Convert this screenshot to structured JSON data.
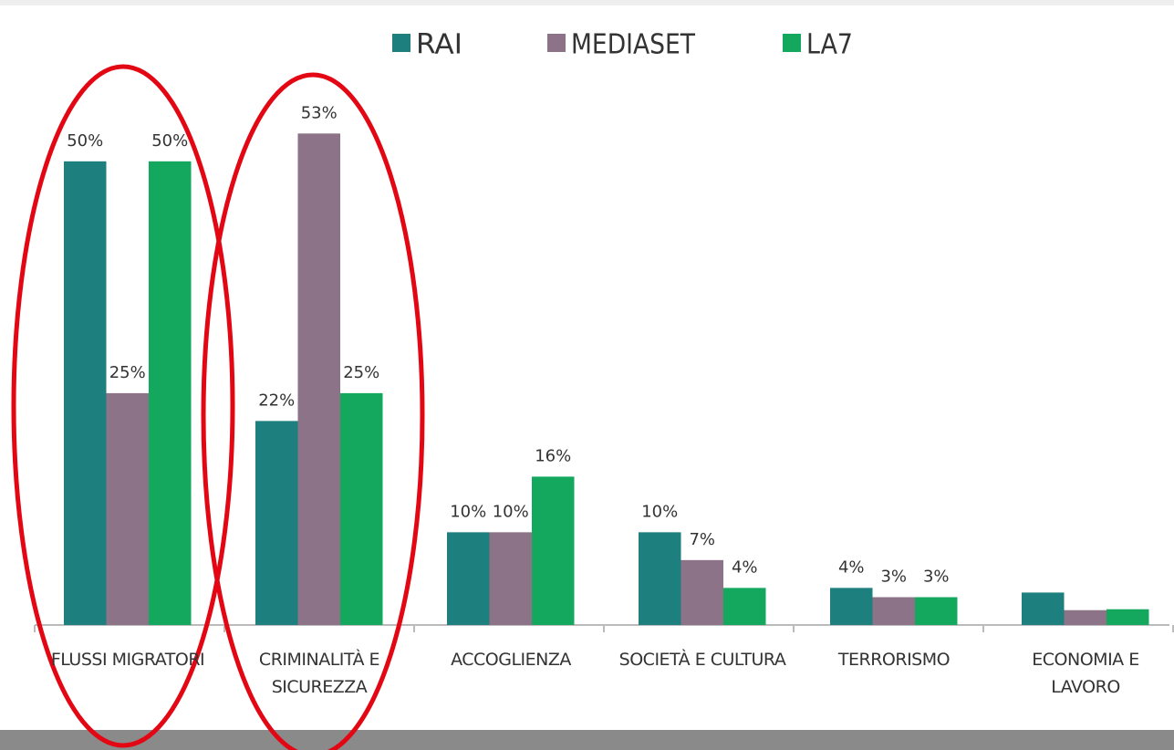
{
  "chart_data": {
    "type": "bar",
    "categories": [
      "FLUSSI MIGRATORI",
      "CRIMINALITÀ E SICUREZZA",
      "ACCOGLIENZA",
      "SOCIETÀ E CULTURA",
      "TERRORISMO",
      "ECONOMIA E LAVORO"
    ],
    "series": [
      {
        "name": "RAI",
        "color": "#1e7f7f",
        "values": [
          50,
          22,
          10,
          10,
          4,
          3.5
        ],
        "value_labels": [
          "50%",
          "22%",
          "10%",
          "10%",
          "4%",
          null
        ]
      },
      {
        "name": "MEDIASET",
        "color": "#8c7387",
        "values": [
          25,
          53,
          10,
          7,
          3,
          1.6
        ],
        "value_labels": [
          "25%",
          "53%",
          "10%",
          "7%",
          "3%",
          null
        ]
      },
      {
        "name": "LA7",
        "color": "#14a85f",
        "values": [
          50,
          25,
          16,
          4,
          3,
          1.7
        ],
        "value_labels": [
          "50%",
          "25%",
          "16%",
          "4%",
          "3%",
          null
        ]
      }
    ],
    "ylim": [
      0,
      55
    ]
  }
}
